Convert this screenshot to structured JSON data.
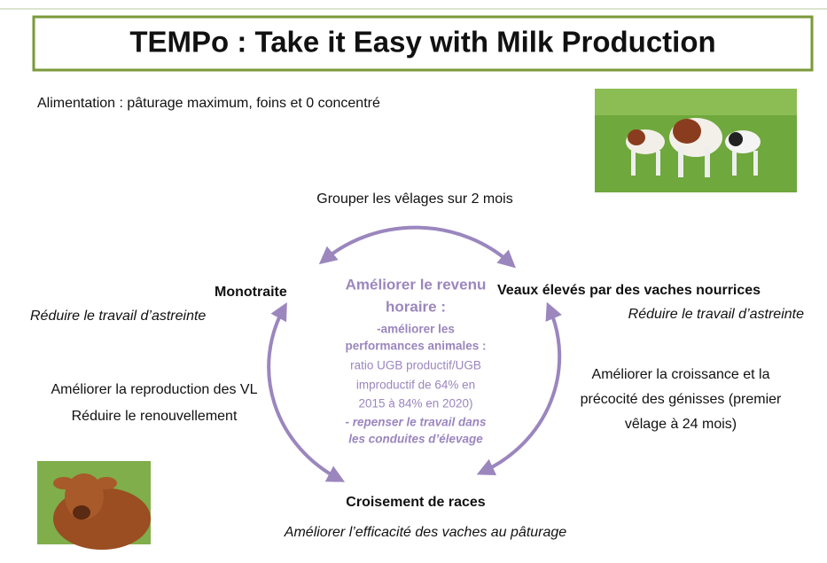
{
  "header": {
    "title": "TEMPo : Take it Easy with Milk Production"
  },
  "intro": "Alimentation : pâturage maximum, foins et 0 concentré",
  "top": "Grouper les vêlages sur 2 mois",
  "center": {
    "title": [
      "Améliorer le revenu",
      "horaire :"
    ],
    "point1": [
      "-améliorer les",
      "performances animales :"
    ],
    "detail": [
      "ratio UGB productif/UGB",
      "improductif de 64% en",
      "2015 à 84% en 2020)"
    ],
    "point2": [
      "- repenser le travail dans",
      "les conduites d’élevage"
    ]
  },
  "left": {
    "title": "Monotraite",
    "subtitle": "Réduire le travail d’astreinte",
    "lines": [
      "Améliorer la reproduction des VL",
      "Réduire le renouvellement"
    ]
  },
  "right": {
    "title": "Veaux élevés par des vaches nourrices",
    "subtitle": "Réduire le travail d’astreinte",
    "lines": [
      "Améliorer la croissance et la",
      "précocité des génisses (premier",
      "vêlage à 24 mois)"
    ]
  },
  "bottom": {
    "title": "Croisement de races",
    "subtitle": "Améliorer l’efficacité des vaches au pâturage"
  }
}
